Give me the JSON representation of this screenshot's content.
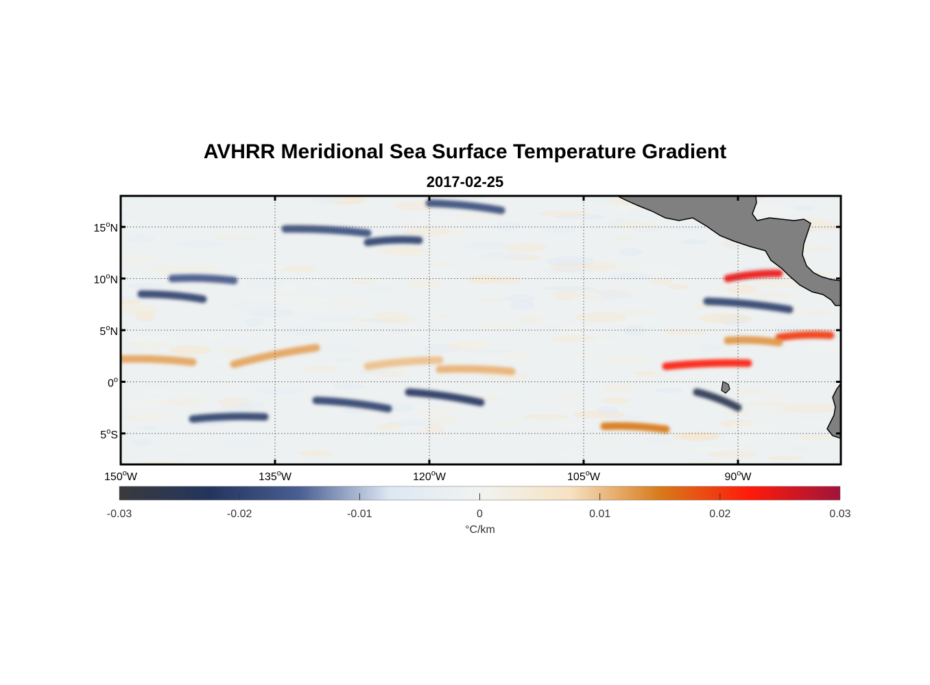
{
  "title": "AVHRR Meridional Sea Surface Temperature Gradient",
  "subtitle": "2017-02-25",
  "map": {
    "lon_range": [
      -150,
      -80
    ],
    "lat_range": [
      -8,
      18
    ],
    "land_color": "#808080",
    "lat_ticks": [
      {
        "value": 15,
        "num": "15",
        "hemi": "N"
      },
      {
        "value": 10,
        "num": "10",
        "hemi": "N"
      },
      {
        "value": 5,
        "num": "5",
        "hemi": "N"
      },
      {
        "value": 0,
        "num": "0",
        "hemi": ""
      },
      {
        "value": -5,
        "num": "5",
        "hemi": "S"
      }
    ],
    "lon_ticks": [
      {
        "value": -150,
        "num": "150",
        "hemi": "W"
      },
      {
        "value": -135,
        "num": "135",
        "hemi": "W"
      },
      {
        "value": -120,
        "num": "120",
        "hemi": "W"
      },
      {
        "value": -105,
        "num": "105",
        "hemi": "W"
      },
      {
        "value": -90,
        "num": "90",
        "hemi": "W"
      }
    ]
  },
  "colorbar": {
    "range": [
      -0.03,
      0.03
    ],
    "ticks": [
      "-0.03",
      "-0.02",
      "-0.01",
      "0",
      "0.01",
      "0.02",
      "0.03"
    ],
    "label": "°C/km",
    "colors": [
      "#3a3a3c",
      "#23355e",
      "#4a5f92",
      "#dde8f4",
      "#f1f3f1",
      "#f7e2c2",
      "#d87a1a",
      "#ff1a0a",
      "#a0143a"
    ]
  },
  "chart_data": {
    "type": "heatmap",
    "title": "AVHRR Meridional Sea Surface Temperature Gradient",
    "subtitle": "2017-02-25",
    "xlabel": "",
    "ylabel": "",
    "xlim": [
      -150,
      -80
    ],
    "ylim": [
      -8,
      18
    ],
    "colorbar_label": "°C/km",
    "clim": [
      -0.03,
      0.03
    ],
    "features": [
      {
        "kind": "negative",
        "lon": [
          -143,
          -136
        ],
        "lat": [
          -3.6,
          -3.4
        ],
        "value": -0.02
      },
      {
        "kind": "negative",
        "lon": [
          -131,
          -124
        ],
        "lat": [
          -1.8,
          -2.6
        ],
        "value": -0.02
      },
      {
        "kind": "negative",
        "lon": [
          -122,
          -115
        ],
        "lat": [
          -1.0,
          -2.0
        ],
        "value": -0.022
      },
      {
        "kind": "negative",
        "lon": [
          -134,
          -126
        ],
        "lat": [
          14.8,
          14.4
        ],
        "value": -0.018
      },
      {
        "kind": "negative",
        "lon": [
          -126,
          -121
        ],
        "lat": [
          13.5,
          13.7
        ],
        "value": -0.02
      },
      {
        "kind": "negative",
        "lon": [
          -148,
          -142
        ],
        "lat": [
          8.5,
          8.0
        ],
        "value": -0.02
      },
      {
        "kind": "negative",
        "lon": [
          -145,
          -139
        ],
        "lat": [
          10.0,
          9.8
        ],
        "value": -0.016
      },
      {
        "kind": "negative",
        "lon": [
          -93,
          -85
        ],
        "lat": [
          7.8,
          7.0
        ],
        "value": -0.02
      },
      {
        "kind": "negative",
        "lon": [
          -94,
          -90
        ],
        "lat": [
          -1.0,
          -2.5
        ],
        "value": -0.025
      },
      {
        "kind": "negative",
        "lon": [
          -120,
          -113
        ],
        "lat": [
          17.3,
          16.6
        ],
        "value": -0.018
      },
      {
        "kind": "positive",
        "lon": [
          -150,
          -143
        ],
        "lat": [
          2.2,
          1.9
        ],
        "value": 0.012
      },
      {
        "kind": "positive",
        "lon": [
          -139,
          -131
        ],
        "lat": [
          1.7,
          3.3
        ],
        "value": 0.012
      },
      {
        "kind": "positive",
        "lon": [
          -126,
          -119
        ],
        "lat": [
          1.5,
          2.1
        ],
        "value": 0.01
      },
      {
        "kind": "positive",
        "lon": [
          -119,
          -112
        ],
        "lat": [
          1.2,
          1.0
        ],
        "value": 0.011
      },
      {
        "kind": "positive",
        "lon": [
          -97,
          -89
        ],
        "lat": [
          1.5,
          1.8
        ],
        "value": 0.022
      },
      {
        "kind": "positive",
        "lon": [
          -86,
          -81
        ],
        "lat": [
          4.3,
          4.5
        ],
        "value": 0.02
      },
      {
        "kind": "positive",
        "lon": [
          -91,
          -86
        ],
        "lat": [
          10.0,
          10.5
        ],
        "value": 0.024
      },
      {
        "kind": "positive",
        "lon": [
          -103,
          -97
        ],
        "lat": [
          -4.3,
          -4.6
        ],
        "value": 0.015
      },
      {
        "kind": "positive",
        "lon": [
          -91,
          -86
        ],
        "lat": [
          4.0,
          3.8
        ],
        "value": 0.013
      }
    ]
  }
}
